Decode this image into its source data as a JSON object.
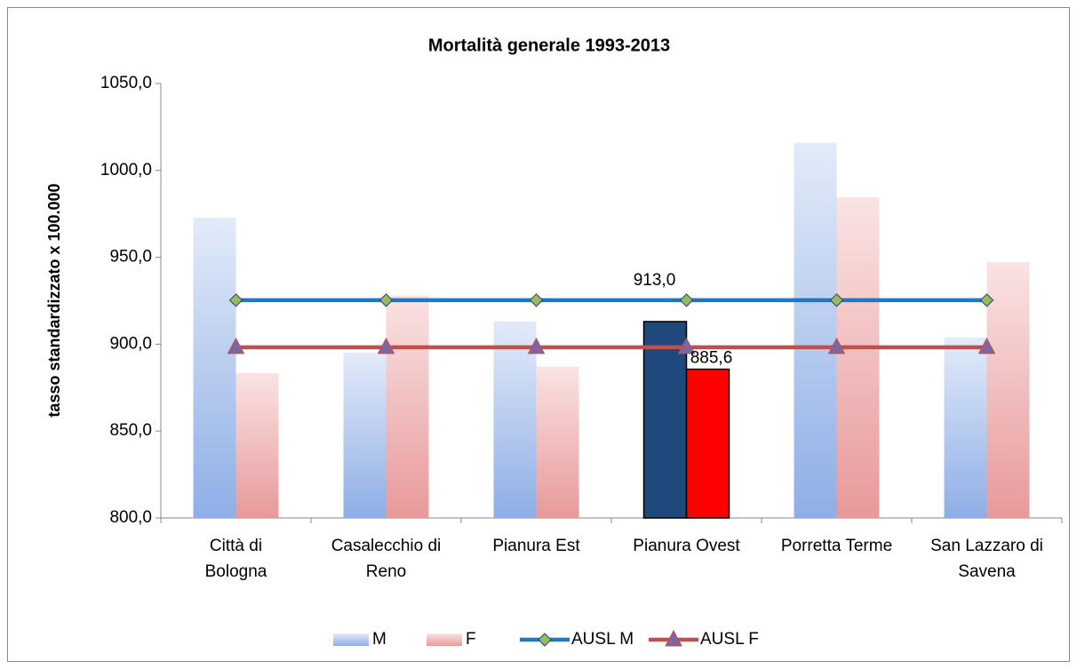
{
  "chart_data": {
    "type": "bar",
    "title": "Mortalità generale 1993-2013",
    "y_label": "tasso standardizzato x 100.000",
    "categories": [
      [
        "Città di",
        "Bologna"
      ],
      [
        "Casalecchio di",
        "Reno"
      ],
      [
        "Pianura Est"
      ],
      [
        "Pianura Ovest"
      ],
      [
        "Porretta Terme"
      ],
      [
        "San Lazzaro di",
        "Savena"
      ]
    ],
    "ylim": [
      800,
      1050
    ],
    "yticks": [
      {
        "value": 800,
        "label": "800,0"
      },
      {
        "value": 850,
        "label": "850,0"
      },
      {
        "value": 900,
        "label": "900,0"
      },
      {
        "value": 950,
        "label": "950,0"
      },
      {
        "value": 1000,
        "label": "1000,0"
      },
      {
        "value": 1050,
        "label": "1050,0"
      }
    ],
    "highlight_index": 3,
    "series": [
      {
        "name": "M",
        "type": "bar",
        "color": "#8eaee6",
        "gradient_from": "#e3ebf9",
        "highlight_color": "#1f497d",
        "values": [
          972.8,
          895.1,
          913.0,
          913.0,
          1016.0,
          903.8
        ],
        "value_labels": [
          null,
          null,
          null,
          "913,0",
          null,
          null
        ]
      },
      {
        "name": "F",
        "type": "bar",
        "color": "#e8999a",
        "gradient_from": "#fae3e3",
        "highlight_color": "#ff0000",
        "values": [
          883.3,
          928.0,
          887.0,
          885.6,
          984.5,
          947.3
        ],
        "value_labels": [
          null,
          null,
          null,
          "885,6",
          null,
          null
        ]
      },
      {
        "name": "AUSL M",
        "type": "line",
        "color": "#1f78c0",
        "marker": "diamond",
        "marker_color": "#9bbb59",
        "values": [
          925.3,
          925.3,
          925.3,
          925.3,
          925.3,
          925.3
        ]
      },
      {
        "name": "AUSL F",
        "type": "line",
        "color": "#c0504d",
        "marker": "triangle",
        "marker_color": "#8064a2",
        "values": [
          898.2,
          898.2,
          898.2,
          898.2,
          898.2,
          898.2
        ]
      }
    ]
  }
}
